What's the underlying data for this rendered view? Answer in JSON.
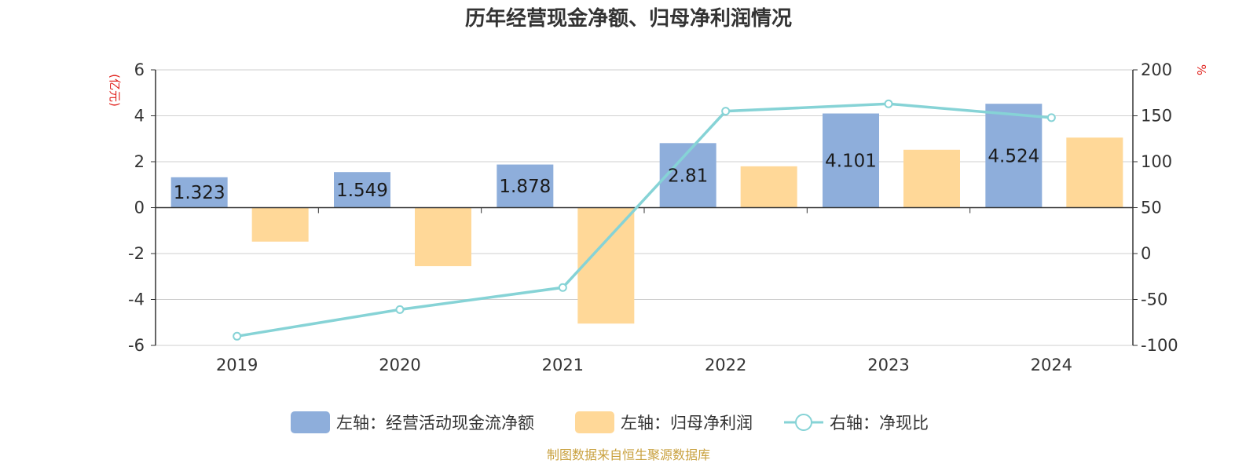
{
  "page": {
    "title": "历年经营现金净额、归母净利润情况",
    "source": "制图数据来自恒生聚源数据库"
  },
  "chart_data": {
    "type": "bar",
    "title": "历年经营现金净额、归母净利润情况",
    "categories": [
      "2019",
      "2020",
      "2021",
      "2022",
      "2023",
      "2024"
    ],
    "left_axis": {
      "unit": "(亿元)",
      "range": [
        -6,
        6
      ],
      "ticks": [
        6,
        4,
        2,
        0,
        -2,
        -4,
        -6
      ],
      "tick_labels": [
        "6",
        "4",
        "2",
        "0",
        "-2",
        "-4",
        "-6"
      ]
    },
    "right_axis": {
      "unit": "%",
      "range": [
        -100,
        200
      ],
      "ticks": [
        200,
        150,
        100,
        50,
        0,
        -50,
        -100
      ],
      "tick_labels": [
        "200",
        "150",
        "100",
        "50",
        "0",
        "-50",
        "-100"
      ]
    },
    "grid": true,
    "legend_position": "bottom",
    "series": [
      {
        "name": "左轴：经营活动现金流净额",
        "type": "bar",
        "axis": "left",
        "color": "#8eaedb",
        "values": [
          1.323,
          1.549,
          1.878,
          2.81,
          4.101,
          4.524
        ],
        "data_labels": [
          "1.323",
          "1.549",
          "1.878",
          "2.81",
          "4.101",
          "4.524"
        ]
      },
      {
        "name": "左轴：归母净利润",
        "type": "bar",
        "axis": "left",
        "color": "#ffd898",
        "values": [
          -1.48,
          -2.55,
          -5.05,
          1.8,
          2.52,
          3.05
        ]
      },
      {
        "name": "右轴：净现比",
        "type": "line",
        "axis": "right",
        "color": "#86d3d6",
        "values": [
          -90,
          -61,
          -37,
          155,
          163,
          148
        ]
      }
    ]
  }
}
